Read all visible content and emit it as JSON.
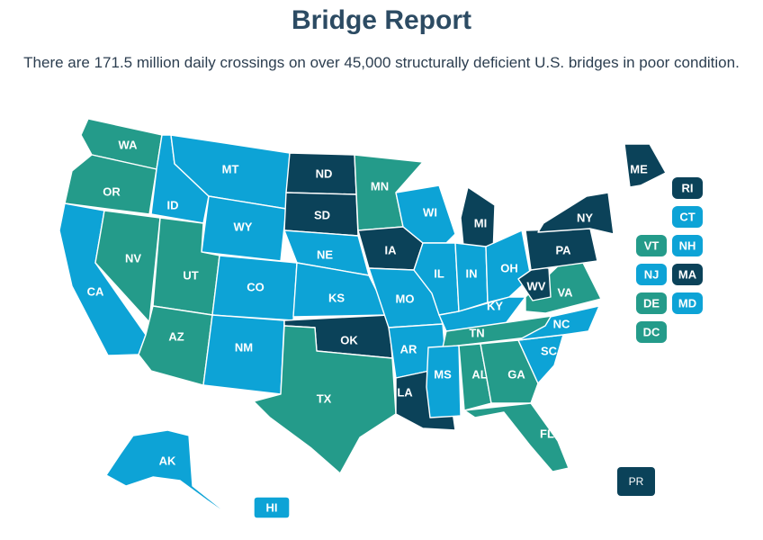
{
  "header": {
    "title": "Bridge Report",
    "subtitle": "There are 171.5 million daily crossings on over 45,000 structurally deficient U.S. bridges in poor condition."
  },
  "colors": {
    "dark": "#0b4259",
    "blue": "#0da3d6",
    "teal": "#249b8a",
    "border": "#ffffff"
  },
  "states": [
    {
      "code": "WA",
      "category": "teal"
    },
    {
      "code": "OR",
      "category": "teal"
    },
    {
      "code": "CA",
      "category": "blue"
    },
    {
      "code": "ID",
      "category": "blue"
    },
    {
      "code": "NV",
      "category": "teal"
    },
    {
      "code": "MT",
      "category": "blue"
    },
    {
      "code": "WY",
      "category": "blue"
    },
    {
      "code": "UT",
      "category": "teal"
    },
    {
      "code": "AZ",
      "category": "teal"
    },
    {
      "code": "CO",
      "category": "blue"
    },
    {
      "code": "NM",
      "category": "blue"
    },
    {
      "code": "ND",
      "category": "dark"
    },
    {
      "code": "SD",
      "category": "dark"
    },
    {
      "code": "NE",
      "category": "blue"
    },
    {
      "code": "KS",
      "category": "blue"
    },
    {
      "code": "OK",
      "category": "dark"
    },
    {
      "code": "TX",
      "category": "teal"
    },
    {
      "code": "MN",
      "category": "teal"
    },
    {
      "code": "IA",
      "category": "dark"
    },
    {
      "code": "MO",
      "category": "blue"
    },
    {
      "code": "AR",
      "category": "blue"
    },
    {
      "code": "LA",
      "category": "dark"
    },
    {
      "code": "WI",
      "category": "blue"
    },
    {
      "code": "IL",
      "category": "blue"
    },
    {
      "code": "MI",
      "category": "dark"
    },
    {
      "code": "IN",
      "category": "blue"
    },
    {
      "code": "OH",
      "category": "blue"
    },
    {
      "code": "KY",
      "category": "blue"
    },
    {
      "code": "TN",
      "category": "teal"
    },
    {
      "code": "MS",
      "category": "blue"
    },
    {
      "code": "AL",
      "category": "teal"
    },
    {
      "code": "GA",
      "category": "teal"
    },
    {
      "code": "FL",
      "category": "teal"
    },
    {
      "code": "SC",
      "category": "blue"
    },
    {
      "code": "NC",
      "category": "blue"
    },
    {
      "code": "VA",
      "category": "teal"
    },
    {
      "code": "WV",
      "category": "dark"
    },
    {
      "code": "PA",
      "category": "dark"
    },
    {
      "code": "NY",
      "category": "dark"
    },
    {
      "code": "ME",
      "category": "dark"
    },
    {
      "code": "AK",
      "category": "blue"
    },
    {
      "code": "HI",
      "category": "blue"
    }
  ],
  "badges": [
    {
      "code": "RI",
      "category": "dark"
    },
    {
      "code": "CT",
      "category": "blue"
    },
    {
      "code": "VT",
      "category": "teal"
    },
    {
      "code": "NH",
      "category": "blue"
    },
    {
      "code": "NJ",
      "category": "blue"
    },
    {
      "code": "MA",
      "category": "dark"
    },
    {
      "code": "DE",
      "category": "teal"
    },
    {
      "code": "MD",
      "category": "blue"
    },
    {
      "code": "DC",
      "category": "teal"
    },
    {
      "code": "PR",
      "category": "dark"
    }
  ]
}
